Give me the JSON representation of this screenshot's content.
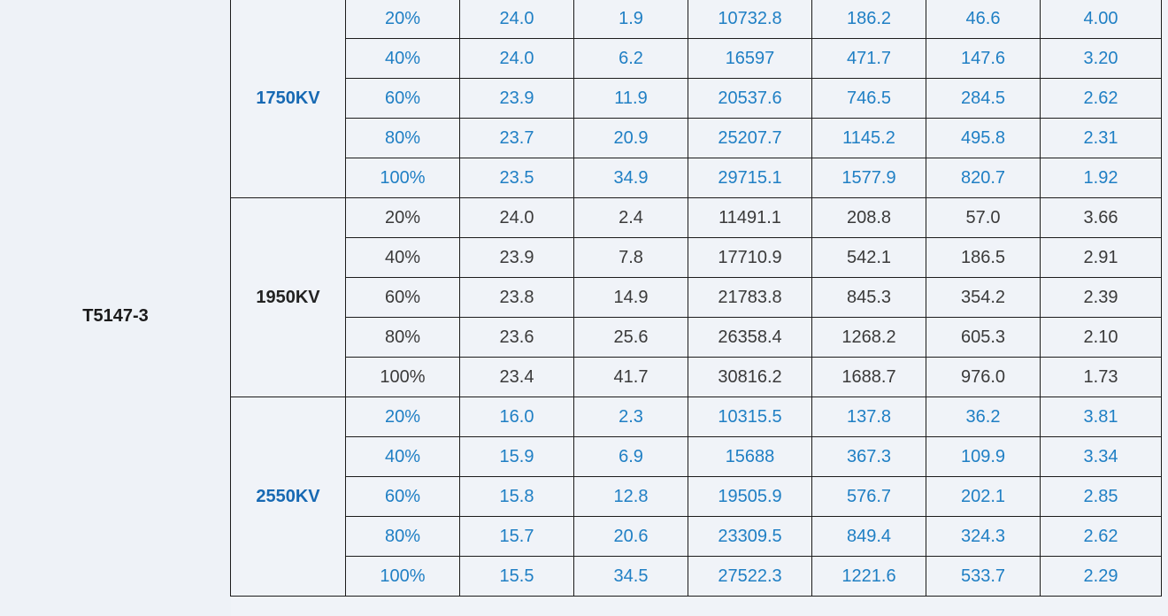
{
  "model": "T5147-3",
  "groups": [
    {
      "label": "1750KV",
      "color_style": "blue",
      "rows": [
        [
          "20%",
          "24.0",
          "1.9",
          "10732.8",
          "186.2",
          "46.6",
          "4.00"
        ],
        [
          "40%",
          "24.0",
          "6.2",
          "16597",
          "471.7",
          "147.6",
          "3.20"
        ],
        [
          "60%",
          "23.9",
          "11.9",
          "20537.6",
          "746.5",
          "284.5",
          "2.62"
        ],
        [
          "80%",
          "23.7",
          "20.9",
          "25207.7",
          "1145.2",
          "495.8",
          "2.31"
        ],
        [
          "100%",
          "23.5",
          "34.9",
          "29715.1",
          "1577.9",
          "820.7",
          "1.92"
        ]
      ]
    },
    {
      "label": "1950KV",
      "color_style": "dark",
      "rows": [
        [
          "20%",
          "24.0",
          "2.4",
          "11491.1",
          "208.8",
          "57.0",
          "3.66"
        ],
        [
          "40%",
          "23.9",
          "7.8",
          "17710.9",
          "542.1",
          "186.5",
          "2.91"
        ],
        [
          "60%",
          "23.8",
          "14.9",
          "21783.8",
          "845.3",
          "354.2",
          "2.39"
        ],
        [
          "80%",
          "23.6",
          "25.6",
          "26358.4",
          "1268.2",
          "605.3",
          "2.10"
        ],
        [
          "100%",
          "23.4",
          "41.7",
          "30816.2",
          "1688.7",
          "976.0",
          "1.73"
        ]
      ]
    },
    {
      "label": "2550KV",
      "color_style": "blue",
      "rows": [
        [
          "20%",
          "16.0",
          "2.3",
          "10315.5",
          "137.8",
          "36.2",
          "3.81"
        ],
        [
          "40%",
          "15.9",
          "6.9",
          "15688",
          "367.3",
          "109.9",
          "3.34"
        ],
        [
          "60%",
          "15.8",
          "12.8",
          "19505.9",
          "576.7",
          "202.1",
          "2.85"
        ],
        [
          "80%",
          "15.7",
          "20.6",
          "23309.5",
          "849.4",
          "324.3",
          "2.62"
        ],
        [
          "100%",
          "15.5",
          "34.5",
          "27522.3",
          "1221.6",
          "533.7",
          "2.29"
        ]
      ]
    }
  ],
  "colors": {
    "blue_text": "#1f7fc4",
    "dark_text": "#3a3a3a",
    "border": "#1c1c1c",
    "background": "#f0f3f8"
  }
}
